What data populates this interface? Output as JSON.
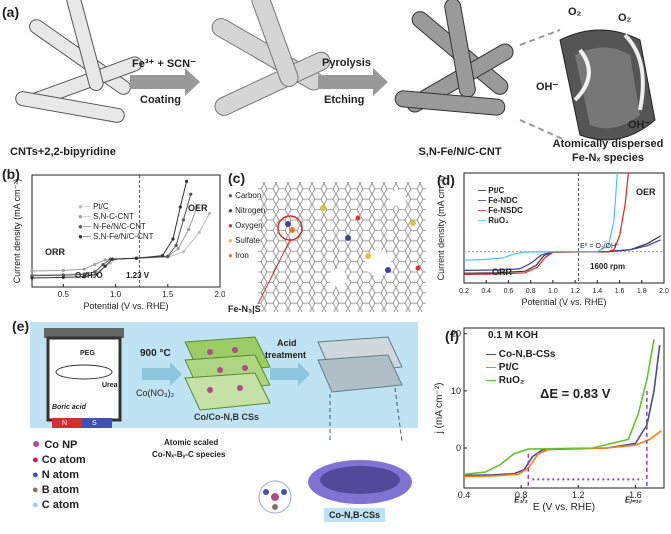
{
  "panels": {
    "a": {
      "label": "(a)",
      "step1_top": "Fe³⁺ + SCN⁻",
      "step1_bottom": "Coating",
      "step2_top": "Pyrolysis",
      "step2_bottom": "Etching",
      "caption1": "CNTs+2,2-bipyridine",
      "caption2": "S,N-Fe/N/C-CNT",
      "caption3_line1": "Atomically dispersed",
      "caption3_line2": "Fe-Nₓ species",
      "o2_left": "O₂",
      "o2_right": "O₂",
      "oh_left": "OH⁻",
      "oh_right": "OH⁻"
    },
    "b": {
      "label": "(b)",
      "ylabel": "Current density (mA cm⁻²)",
      "xlabel": "Potential (V vs. RHE)",
      "orr": "ORR",
      "oer": "OER",
      "annot_left": "O₂/H₂O",
      "annot_right": "1.23 V",
      "legend": [
        "Pt/C",
        "S,N-C-CNT",
        "N-Fe/N/C-CNT",
        "S,N-Fe/N/C-CNT"
      ]
    },
    "c": {
      "label": "(c)",
      "legend": [
        "Carbon",
        "Nitrogen",
        "Oxygen",
        "Sulfate",
        "Iron"
      ],
      "callout": "Fe-N₃|S"
    },
    "d": {
      "label": "(d)",
      "ylabel": "Current density (mA cm⁻²)",
      "xlabel": "Potential (V vs. RHE)",
      "orr": "ORR",
      "oer": "OER",
      "rpm": "1600 rpm",
      "e0": "E⁰ = O₂/OH⁻",
      "legend": [
        "Pt/C",
        "Fe-NDC",
        "Fe-NSDC",
        "RuO₂"
      ]
    },
    "e": {
      "label": "(e)",
      "peg": "PEG",
      "urea": "Urea",
      "boric": "Boric acid",
      "n": "N",
      "s": "S",
      "temp": "900 °C",
      "reagent": "Co(NO₃)₂",
      "acid_line1": "Acid",
      "acid_line2": "treatment",
      "box1": "Co/Co-N,B CSs",
      "box2": "Co-N,B-CSs",
      "atomic_line1": "Atomic scaled",
      "atomic_line2": "Co-Nₓ-Bᵧ-C species",
      "legend": [
        "Co NP",
        "Co atom",
        "N atom",
        "B atom",
        "C atom"
      ]
    },
    "f": {
      "label": "(f)",
      "electrolyte": "0.1 M KOH",
      "ylabel": "j (mA cm⁻²)",
      "xlabel": "E (V vs. RHE)",
      "delta": "ΔE = 0.83 V",
      "e_half": "E₁/₂",
      "e_j10": "Eⱼ₌₁₀",
      "legend": [
        "Co-N,B-CSs",
        "Pt/C",
        "RuO₂"
      ]
    }
  },
  "chart_data": [
    {
      "id": "b",
      "type": "line",
      "xlabel": "Potential (V vs. RHE)",
      "ylabel": "Current density (mA cm⁻²)",
      "xlim": [
        0.2,
        2.0
      ],
      "xticks": [
        0.5,
        1.0,
        1.5,
        2.0
      ],
      "reference_line_x": 1.23,
      "series": [
        {
          "name": "Pt/C",
          "color": "#bdbdbd",
          "points": [
            [
              0.2,
              -5.2
            ],
            [
              0.5,
              -5.1
            ],
            [
              0.7,
              -4.9
            ],
            [
              0.85,
              -4.0
            ],
            [
              0.95,
              -1.5
            ],
            [
              1.0,
              -0.3
            ],
            [
              1.2,
              0
            ],
            [
              1.5,
              0.3
            ],
            [
              1.65,
              2
            ],
            [
              1.8,
              8
            ],
            [
              1.9,
              14
            ]
          ]
        },
        {
          "name": "S,N-C-CNT",
          "color": "#9e9e9e",
          "points": [
            [
              0.2,
              -4.0
            ],
            [
              0.5,
              -3.8
            ],
            [
              0.7,
              -3.4
            ],
            [
              0.8,
              -2.0
            ],
            [
              0.9,
              -0.5
            ],
            [
              1.2,
              0
            ],
            [
              1.5,
              0.5
            ],
            [
              1.6,
              3
            ],
            [
              1.7,
              9
            ],
            [
              1.78,
              16
            ]
          ]
        },
        {
          "name": "N-Fe/N/C-CNT",
          "color": "#555555",
          "points": [
            [
              0.2,
              -5.5
            ],
            [
              0.5,
              -5.3
            ],
            [
              0.7,
              -5.0
            ],
            [
              0.8,
              -4.3
            ],
            [
              0.88,
              -2.0
            ],
            [
              0.95,
              -0.3
            ],
            [
              1.2,
              0
            ],
            [
              1.5,
              0.6
            ],
            [
              1.58,
              4
            ],
            [
              1.65,
              12
            ],
            [
              1.72,
              20
            ]
          ]
        },
        {
          "name": "S,N-Fe/N/C-CNT",
          "color": "#333333",
          "points": [
            [
              0.2,
              -6.2
            ],
            [
              0.5,
              -6.0
            ],
            [
              0.7,
              -5.8
            ],
            [
              0.82,
              -5.0
            ],
            [
              0.9,
              -2.5
            ],
            [
              0.97,
              -0.3
            ],
            [
              1.2,
              0
            ],
            [
              1.45,
              0.8
            ],
            [
              1.55,
              6
            ],
            [
              1.62,
              16
            ],
            [
              1.68,
              24
            ]
          ]
        }
      ]
    },
    {
      "id": "d",
      "type": "line",
      "xlabel": "Potential (V vs. RHE)",
      "ylabel": "Current density (mA cm⁻²)",
      "xlim": [
        0.2,
        2.0
      ],
      "xticks": [
        0.2,
        0.4,
        0.6,
        0.8,
        1.0,
        1.2,
        1.4,
        1.6,
        1.8,
        2.0
      ],
      "reference_line_x": 1.23,
      "series": [
        {
          "name": "Pt/C",
          "color": "#333333",
          "points": [
            [
              0.2,
              -5.5
            ],
            [
              0.5,
              -5.4
            ],
            [
              0.75,
              -5.0
            ],
            [
              0.85,
              -3.5
            ],
            [
              0.92,
              -1.0
            ],
            [
              1.0,
              -0.1
            ],
            [
              1.5,
              0
            ],
            [
              1.7,
              0.5
            ],
            [
              1.85,
              2
            ],
            [
              1.97,
              4
            ]
          ]
        },
        {
          "name": "Fe-NDC",
          "color": "#3f3f9f",
          "points": [
            [
              0.2,
              -4.8
            ],
            [
              0.5,
              -4.7
            ],
            [
              0.7,
              -4.4
            ],
            [
              0.8,
              -3.0
            ],
            [
              0.9,
              -0.8
            ],
            [
              1.0,
              -0.1
            ],
            [
              1.5,
              0
            ],
            [
              1.7,
              0.5
            ],
            [
              1.85,
              1.5
            ],
            [
              1.97,
              3
            ]
          ]
        },
        {
          "name": "Fe-NSDC",
          "color": "#d62728",
          "points": [
            [
              0.2,
              -5.8
            ],
            [
              0.5,
              -5.7
            ],
            [
              0.75,
              -5.4
            ],
            [
              0.86,
              -4.0
            ],
            [
              0.93,
              -1.5
            ],
            [
              1.0,
              -0.2
            ],
            [
              1.5,
              0
            ],
            [
              1.55,
              0.5
            ],
            [
              1.6,
              4
            ],
            [
              1.65,
              12
            ],
            [
              1.68,
              20
            ]
          ]
        },
        {
          "name": "RuO₂",
          "color": "#4fc3f7",
          "points": [
            [
              0.2,
              -2.2
            ],
            [
              0.4,
              -2.0
            ],
            [
              0.55,
              -1.6
            ],
            [
              0.65,
              -0.6
            ],
            [
              0.75,
              -0.1
            ],
            [
              1.4,
              0
            ],
            [
              1.5,
              1.5
            ],
            [
              1.55,
              8
            ],
            [
              1.58,
              20
            ]
          ]
        }
      ]
    },
    {
      "id": "f",
      "type": "line",
      "xlabel": "E (V vs. RHE)",
      "ylabel": "j (mA cm⁻²)",
      "xlim": [
        0.4,
        1.8
      ],
      "ylim": [
        -5,
        20
      ],
      "xticks": [
        0.4,
        0.8,
        1.2,
        1.6
      ],
      "yticks": [
        0,
        10,
        20
      ],
      "series": [
        {
          "name": "Co-N,B-CSs",
          "color": "#4a4aa0",
          "points": [
            [
              0.4,
              -4.8
            ],
            [
              0.6,
              -4.7
            ],
            [
              0.75,
              -4.5
            ],
            [
              0.82,
              -3.8
            ],
            [
              0.88,
              -1.5
            ],
            [
              0.95,
              -0.3
            ],
            [
              1.4,
              0
            ],
            [
              1.6,
              0.8
            ],
            [
              1.68,
              4
            ],
            [
              1.73,
              10
            ],
            [
              1.77,
              18
            ]
          ]
        },
        {
          "name": "Pt/C",
          "color": "#ff7f0e",
          "points": [
            [
              0.4,
              -5.0
            ],
            [
              0.6,
              -4.9
            ],
            [
              0.78,
              -4.6
            ],
            [
              0.85,
              -3.5
            ],
            [
              0.92,
              -1.0
            ],
            [
              1.0,
              -0.2
            ],
            [
              1.4,
              0
            ],
            [
              1.6,
              0.5
            ],
            [
              1.7,
              1.5
            ],
            [
              1.78,
              3
            ]
          ]
        },
        {
          "name": "RuO₂",
          "color": "#66c22a",
          "points": [
            [
              0.4,
              -4.6
            ],
            [
              0.55,
              -4.2
            ],
            [
              0.65,
              -3.0
            ],
            [
              0.75,
              -1.0
            ],
            [
              0.85,
              -0.2
            ],
            [
              1.3,
              0
            ],
            [
              1.55,
              1.5
            ],
            [
              1.62,
              6
            ],
            [
              1.68,
              12
            ],
            [
              1.73,
              19
            ]
          ]
        }
      ]
    }
  ]
}
